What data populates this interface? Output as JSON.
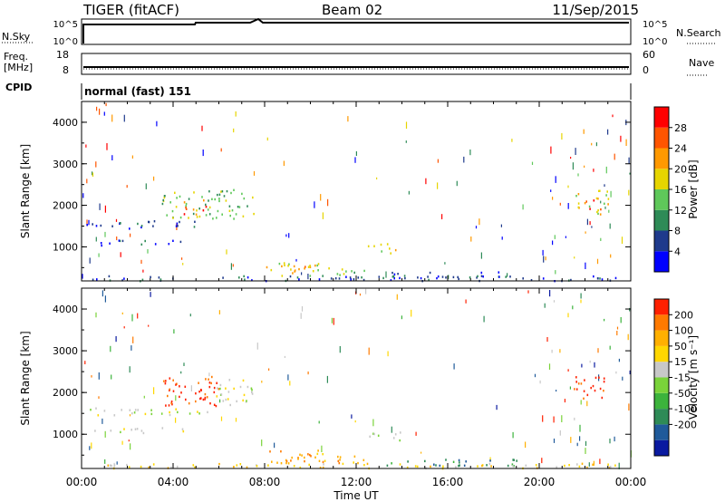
{
  "header": {
    "station": "TIGER (fitACF)",
    "beam": "Beam 02",
    "date": "11/Sep/2015"
  },
  "strip_panels": {
    "nsky": {
      "left_label": "N.Sky",
      "left_ticks": [
        "10^5",
        "10^0"
      ],
      "right_ticks": [
        "10^5",
        "10^0"
      ],
      "right_label": "N.Search"
    },
    "freq": {
      "left_label_1": "Freq.",
      "left_label_2": "[MHz]",
      "left_ticks": [
        "18",
        "8"
      ],
      "right_ticks": [
        "60",
        "0"
      ],
      "right_label": "Nave"
    },
    "cpid": {
      "label": "CPID",
      "text": "normal (fast) 151"
    }
  },
  "chart_data": [
    {
      "type": "heatmap",
      "name": "power",
      "ylabel": "Slant Range [km]",
      "yticks": [
        1000,
        2000,
        3000,
        4000
      ],
      "ylim": [
        180,
        4500
      ],
      "colorbar": {
        "label": "Power [dB]",
        "ticks": [
          4,
          8,
          12,
          16,
          20,
          24,
          28
        ],
        "colors": [
          "#0000ff",
          "#1f3a8c",
          "#2e8b57",
          "#5fc85a",
          "#e6d500",
          "#ff9900",
          "#ff5500",
          "#ff0000"
        ]
      },
      "regions": [
        {
          "t0": 0.2,
          "t1": 5.2,
          "r0": 1450,
          "r1": 1650,
          "level": 1
        },
        {
          "t0": 0.5,
          "t1": 4.5,
          "r0": 1050,
          "r1": 1180,
          "level": 1
        },
        {
          "t0": 3.5,
          "t1": 6.0,
          "r0": 1700,
          "r1": 2400,
          "level": 3
        },
        {
          "t0": 4.3,
          "t1": 5.5,
          "r0": 1800,
          "r1": 2150,
          "level": 6
        },
        {
          "t0": 5.8,
          "t1": 7.5,
          "r0": 1700,
          "r1": 2400,
          "level": 3
        },
        {
          "t0": 8.0,
          "t1": 10.8,
          "r0": 320,
          "r1": 650,
          "level": 4
        },
        {
          "t0": 8.5,
          "t1": 10.0,
          "r0": 380,
          "r1": 560,
          "level": 5
        },
        {
          "t0": 10.5,
          "t1": 12.8,
          "r0": 320,
          "r1": 500,
          "level": 3
        },
        {
          "t0": 12.5,
          "t1": 14.0,
          "r0": 850,
          "r1": 1100,
          "level": 4
        },
        {
          "t0": 12.8,
          "t1": 19.0,
          "r0": 250,
          "r1": 420,
          "level": 1
        },
        {
          "t0": 21.5,
          "t1": 23.0,
          "r0": 1800,
          "r1": 2400,
          "level": 4
        },
        {
          "t0": 22.0,
          "t1": 22.8,
          "r0": 1900,
          "r1": 2150,
          "level": 6
        },
        {
          "t0": 0.0,
          "t1": 24.0,
          "r0": 200,
          "r1": 320,
          "level": 1
        }
      ]
    },
    {
      "type": "heatmap",
      "name": "velocity",
      "xlabel": "Time UT",
      "xticks": [
        "00:00",
        "04:00",
        "08:00",
        "12:00",
        "16:00",
        "20:00",
        "00:00"
      ],
      "xlim": [
        0,
        24
      ],
      "ylabel": "Slant Range [km]",
      "yticks": [
        1000,
        2000,
        3000,
        4000
      ],
      "ylim": [
        180,
        4500
      ],
      "colorbar": {
        "label": "Velocity [m s⁻¹]",
        "ticks": [
          200,
          100,
          50,
          15,
          -15,
          -50,
          -100,
          -200
        ],
        "colors": [
          "#0a1aa0",
          "#1f5a9a",
          "#2e8b57",
          "#3cb33c",
          "#7ad33a",
          "#c8c8c8",
          "#ffd700",
          "#ffb000",
          "#ff7a00",
          "#ff2000"
        ]
      },
      "regions": [
        {
          "t0": 0.3,
          "t1": 5.5,
          "r0": 1450,
          "r1": 1650,
          "level": 5
        },
        {
          "t0": 0.5,
          "t1": 4.5,
          "r0": 1050,
          "r1": 1180,
          "level": 5
        },
        {
          "t0": 3.5,
          "t1": 6.0,
          "r0": 1700,
          "r1": 2400,
          "level": 9
        },
        {
          "t0": 4.3,
          "t1": 5.5,
          "r0": 1800,
          "r1": 2150,
          "level": 9
        },
        {
          "t0": 5.8,
          "t1": 7.5,
          "r0": 1700,
          "r1": 2400,
          "level": 5
        },
        {
          "t0": 8.0,
          "t1": 10.8,
          "r0": 320,
          "r1": 650,
          "level": 7
        },
        {
          "t0": 8.5,
          "t1": 10.0,
          "r0": 380,
          "r1": 560,
          "level": 8
        },
        {
          "t0": 10.5,
          "t1": 12.8,
          "r0": 320,
          "r1": 500,
          "level": 7
        },
        {
          "t0": 12.5,
          "t1": 14.0,
          "r0": 850,
          "r1": 1100,
          "level": 5
        },
        {
          "t0": 13.0,
          "t1": 19.0,
          "r0": 250,
          "r1": 420,
          "level": 2
        },
        {
          "t0": 21.5,
          "t1": 23.0,
          "r0": 1800,
          "r1": 2400,
          "level": 9
        },
        {
          "t0": 0.0,
          "t1": 24.0,
          "r0": 200,
          "r1": 320,
          "level": 6
        }
      ]
    }
  ]
}
